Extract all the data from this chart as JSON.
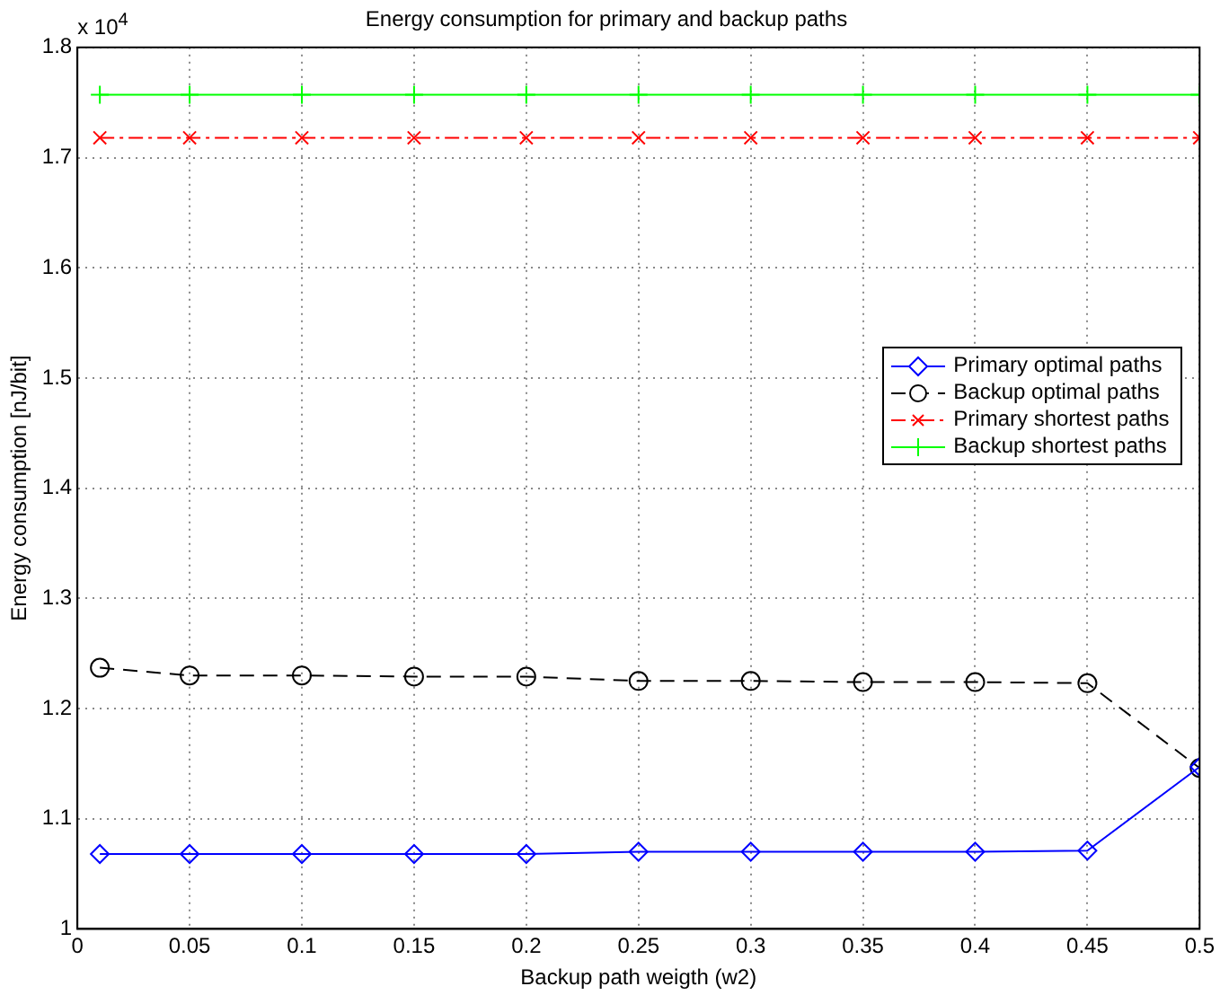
{
  "chart_data": {
    "type": "line",
    "title": "Energy consumption for primary and backup paths",
    "xlabel": "Backup path weigth (w2)",
    "ylabel": "Energy consumption [nJ/bit]",
    "annotations": [
      "x 10$^{4}$"
    ],
    "x": [
      0.01,
      0.05,
      0.1,
      0.15,
      0.2,
      0.25,
      0.3,
      0.35,
      0.4,
      0.45,
      0.5
    ],
    "series": [
      {
        "name": "Primary optimal paths",
        "color": "#0000ff",
        "marker": "diamond",
        "line_style": "solid",
        "values": [
          1.068,
          1.068,
          1.068,
          1.068,
          1.068,
          1.07,
          1.07,
          1.07,
          1.07,
          1.071,
          1.147
        ]
      },
      {
        "name": "Backup optimal paths",
        "color": "#000000",
        "marker": "circle",
        "line_style": "dashed",
        "values": [
          1.237,
          1.23,
          1.23,
          1.229,
          1.229,
          1.225,
          1.225,
          1.224,
          1.224,
          1.223,
          1.146
        ]
      },
      {
        "name": "Primary shortest paths",
        "color": "#ff0000",
        "marker": "x",
        "line_style": "dashdot",
        "values": [
          1.718,
          1.718,
          1.718,
          1.718,
          1.718,
          1.718,
          1.718,
          1.718,
          1.718,
          1.718,
          1.718
        ]
      },
      {
        "name": "Backup shortest paths",
        "color": "#00ff00",
        "marker": "plus",
        "line_style": "solid",
        "values": [
          1.757,
          1.757,
          1.757,
          1.757,
          1.757,
          1.757,
          1.757,
          1.757,
          1.757,
          1.757,
          1.757
        ]
      }
    ],
    "xlim": [
      0,
      0.5
    ],
    "xticks": [
      0,
      0.05,
      0.1,
      0.15,
      0.2,
      0.25,
      0.3,
      0.35,
      0.4,
      0.45,
      0.5
    ],
    "ylim": [
      1,
      1.8
    ],
    "yticks": [
      1,
      1.1,
      1.2,
      1.3,
      1.4,
      1.5,
      1.6,
      1.7,
      1.8
    ],
    "grid": true,
    "legend": "right"
  }
}
